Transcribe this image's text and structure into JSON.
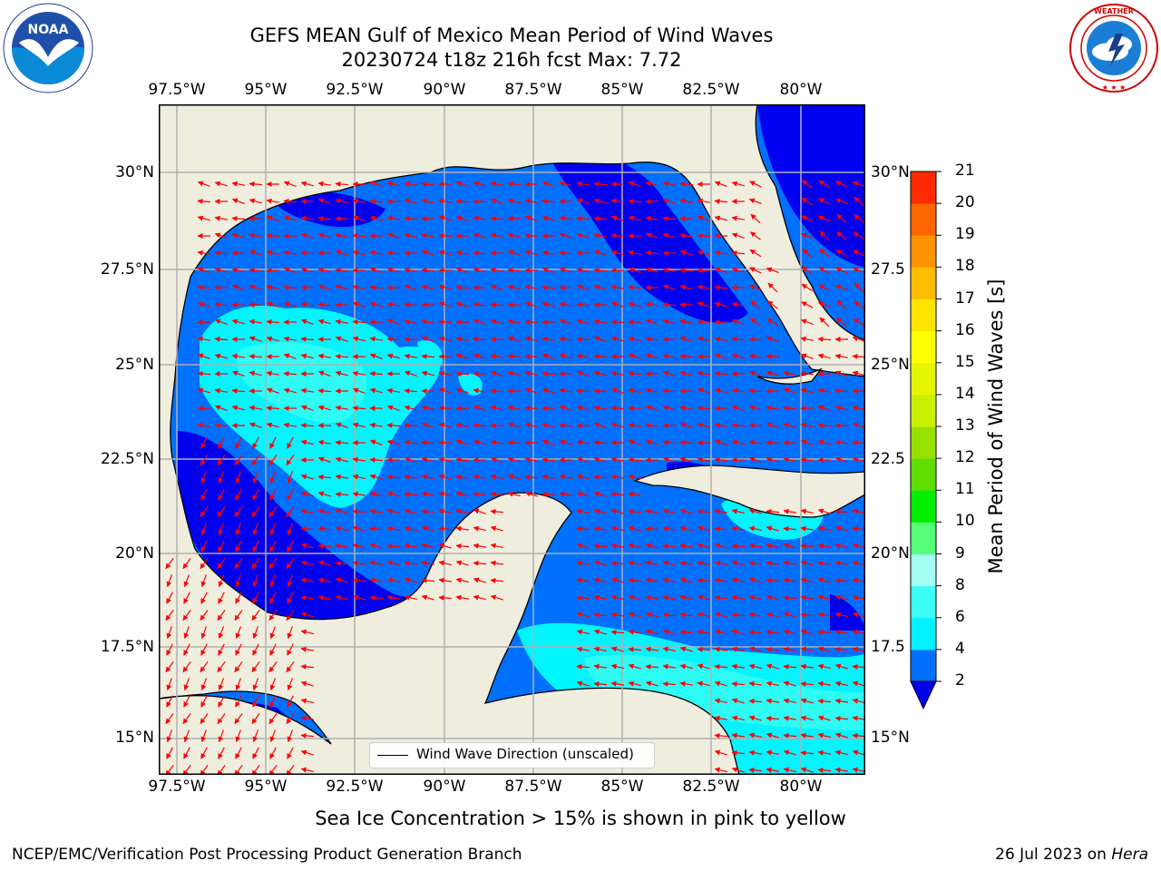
{
  "header": {
    "title_line1": "GEFS MEAN Gulf of Mexico Mean Period of Wind Waves",
    "title_line2": "20230724 t18z 216h fcst   Max: 7.72"
  },
  "logos": {
    "left": "NOAA",
    "right": "National Weather Service"
  },
  "map": {
    "projection": "PlateCarree",
    "lon_range": [
      -98.5,
      -78.7
    ],
    "lat_range": [
      14.1,
      31.8
    ],
    "lon_labels": [
      "97.5°W",
      "95°W",
      "92.5°W",
      "90°W",
      "87.5°W",
      "85°W",
      "82.5°W",
      "80°W"
    ],
    "lat_labels_left": [
      "30°N",
      "27.5°N",
      "25°N",
      "22.5°N",
      "20°N",
      "17.5°N",
      "15°N"
    ],
    "lat_labels_right": [
      "30°N",
      "27.5",
      "25°N",
      "22.5",
      "20°N",
      "17.5",
      "15°N"
    ],
    "gridlines": true,
    "land_color": "#efedde",
    "dominant_wave_direction": "from east / southeast",
    "wave_period_pattern": "mostly 2-4 s over the Gulf and Caribbean, 4-6 s in the central-west Gulf and over much of the NW Caribbean, below 2 s near the coasts"
  },
  "colorbar": {
    "label": "Mean Period of Wind Waves [s]",
    "ticks": [
      "2",
      "4",
      "6",
      "8",
      "9",
      "10",
      "11",
      "12",
      "13",
      "14",
      "15",
      "16",
      "17",
      "18",
      "19",
      "20",
      "21"
    ],
    "colors": [
      "#0070ff",
      "#00f2ff",
      "#3dfcf5",
      "#a2fef2",
      "#55ff77",
      "#00ee00",
      "#5fde00",
      "#98e000",
      "#c8f000",
      "#e6f500",
      "#ffff00",
      "#ffe400",
      "#ffbd00",
      "#ff9400",
      "#ff6600",
      "#ff2a00"
    ],
    "under_color": "#0000f0"
  },
  "legend": {
    "label": "Wind Wave Direction (unscaled)",
    "position": "bottom-center"
  },
  "note": "Sea Ice Concentration > 15% is shown in pink to yellow",
  "footer": {
    "left": "NCEP/EMC/Verification Post Processing Product Generation Branch",
    "right_date": "26 Jul 2023 on ",
    "right_host": "Hera"
  }
}
